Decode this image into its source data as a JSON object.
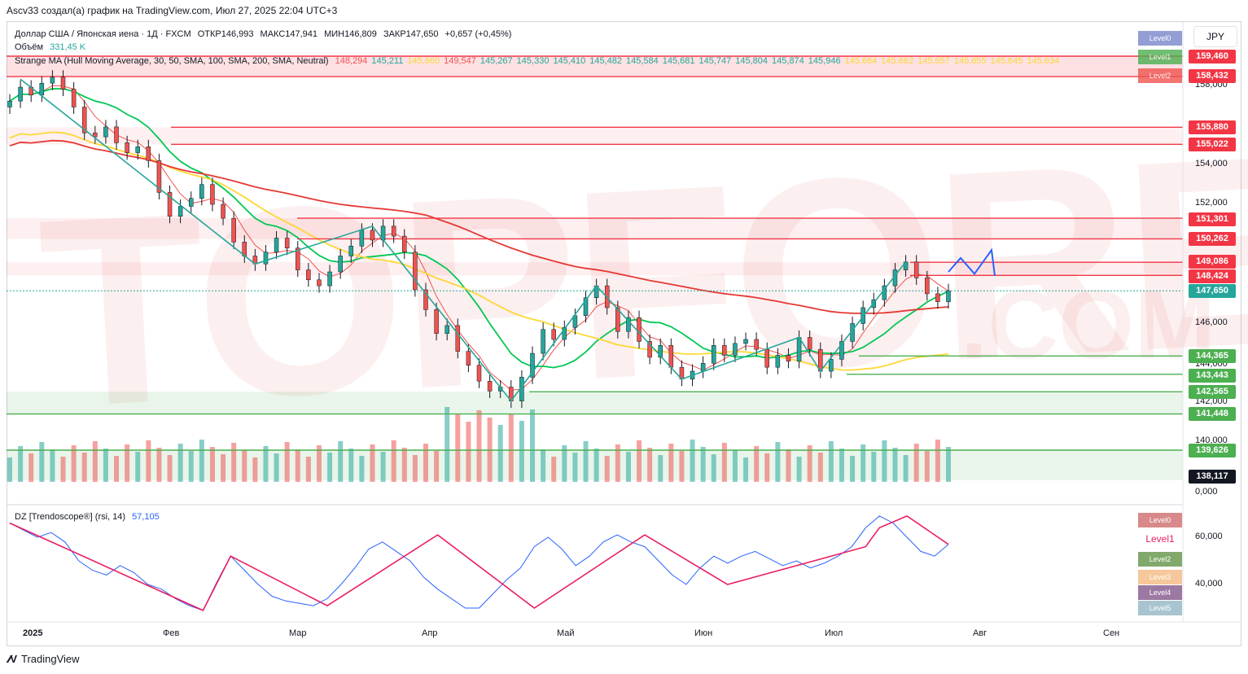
{
  "header": {
    "author_line": "Ascv33 создал(а) график на TradingView.com, Июл 27, 2025 22:04 UTC+3"
  },
  "symbol": {
    "title": "Доллар США / Японская иена · 1Д · FXCM",
    "open": "ОТКР146,993",
    "high": "МАКС147,941",
    "low": "МИН146,809",
    "close": "ЗАКР147,650",
    "change": "+0,657 (+0,45%)"
  },
  "volume": {
    "label": "Объём",
    "value": "331,45 K"
  },
  "ma_indicator": {
    "name": "Strange MA (Hull Moving Average, 30, 50, SMA, 100, SMA, 200, SMA, Neutral)",
    "values": [
      {
        "v": "148,294",
        "c": "#ef5350"
      },
      {
        "v": "145,211",
        "c": "#26a69a"
      },
      {
        "v": "145,660",
        "c": "#fdd835"
      },
      {
        "v": "149,547",
        "c": "#ef5350"
      },
      {
        "v": "145,267",
        "c": "#26a69a"
      },
      {
        "v": "145,330",
        "c": "#26a69a"
      },
      {
        "v": "145,410",
        "c": "#26a69a"
      },
      {
        "v": "145,482",
        "c": "#26a69a"
      },
      {
        "v": "145,584",
        "c": "#26a69a"
      },
      {
        "v": "145,681",
        "c": "#26a69a"
      },
      {
        "v": "145,747",
        "c": "#26a69a"
      },
      {
        "v": "145,804",
        "c": "#26a69a"
      },
      {
        "v": "145,874",
        "c": "#26a69a"
      },
      {
        "v": "145,946",
        "c": "#26a69a"
      },
      {
        "v": "145,664",
        "c": "#fdd835"
      },
      {
        "v": "145,662",
        "c": "#fdd835"
      },
      {
        "v": "145,657",
        "c": "#fdd835"
      },
      {
        "v": "145,655",
        "c": "#fdd835"
      },
      {
        "v": "145,645",
        "c": "#fdd835"
      },
      {
        "v": "145,634",
        "c": "#fdd835"
      }
    ]
  },
  "rsi_indicator": {
    "name": "DZ [Trendoscope®] (rsi, 14)",
    "value": "57,105"
  },
  "currency": "JPY",
  "price_axis": [
    "158,000",
    "154,000",
    "152,000",
    "146,000",
    "144,000",
    "142,000",
    "140,000",
    "0,000"
  ],
  "price_levels": [
    {
      "label": "159,460",
      "color": "#f23645"
    },
    {
      "label": "158,432",
      "color": "#f23645"
    },
    {
      "label": "155,880",
      "color": "#f23645"
    },
    {
      "label": "155,022",
      "color": "#f23645"
    },
    {
      "label": "151,301",
      "color": "#f23645"
    },
    {
      "label": "150,262",
      "color": "#f23645"
    },
    {
      "label": "149,086",
      "color": "#f23645"
    },
    {
      "label": "148,424",
      "color": "#f23645"
    },
    {
      "label": "147,650",
      "color": "#26a69a"
    },
    {
      "label": "144,365",
      "color": "#4caf50"
    },
    {
      "label": "143,443",
      "color": "#4caf50"
    },
    {
      "label": "142,565",
      "color": "#4caf50"
    },
    {
      "label": "141,448",
      "color": "#4caf50"
    },
    {
      "label": "139,626",
      "color": "#4caf50"
    },
    {
      "label": "138,117",
      "color": "#131722"
    }
  ],
  "price_level_boxes": [
    {
      "label": "Level0",
      "color": "#7986cb"
    },
    {
      "label": "Level1",
      "color": "#4caf50"
    },
    {
      "label": "Level2",
      "color": "#ef5350"
    }
  ],
  "rsi_axis": [
    "60,000",
    "40,000"
  ],
  "rsi_level_boxes": [
    {
      "label": "Level0",
      "color": "#d88a8a"
    },
    {
      "label": "Level1",
      "color": "#ffffff"
    },
    {
      "label": "Level2",
      "color": "#81a96b"
    },
    {
      "label": "Level3",
      "color": "#f5c79a"
    },
    {
      "label": "Level4",
      "color": "#9c79a3"
    },
    {
      "label": "Level5",
      "color": "#a8c4d0"
    }
  ],
  "time_axis": [
    "2025",
    "Фев",
    "Мар",
    "Апр",
    "Май",
    "Июн",
    "Июл",
    "Авг",
    "Сен"
  ],
  "footer": {
    "brand": "TradingView"
  },
  "chart_data": {
    "type": "candlestick",
    "title": "Доллар США / Японская иена · 1Д · FXCM",
    "ylabel": "",
    "xlabel": "",
    "ylim": [
      138,
      160
    ],
    "close_series": [
      157.2,
      157.9,
      157.5,
      158.1,
      158.4,
      157.8,
      156.9,
      155.6,
      155.4,
      155.9,
      155.1,
      154.6,
      154.9,
      154.2,
      152.6,
      151.4,
      151.9,
      152.3,
      153.0,
      152.0,
      151.3,
      150.1,
      149.4,
      149.0,
      149.6,
      150.3,
      149.8,
      148.7,
      148.2,
      147.9,
      148.6,
      149.4,
      149.9,
      150.7,
      150.2,
      150.9,
      150.4,
      149.6,
      147.7,
      146.7,
      145.5,
      145.9,
      144.6,
      143.9,
      143.1,
      142.6,
      142.8,
      142.1,
      143.3,
      144.5,
      145.7,
      145.2,
      145.8,
      146.4,
      147.3,
      147.9,
      146.8,
      145.6,
      146.3,
      145.1,
      144.3,
      144.9,
      143.8,
      143.2,
      143.6,
      144.0,
      144.9,
      144.4,
      145.0,
      145.2,
      144.7,
      143.8,
      144.4,
      144.1,
      145.3,
      144.7,
      143.6,
      144.2,
      145.1,
      146.0,
      146.8,
      147.2,
      147.9,
      148.7,
      149.1,
      148.3,
      147.5,
      147.1,
      147.65
    ],
    "rsi_series": [
      66,
      63,
      60,
      62,
      58,
      50,
      46,
      44,
      48,
      45,
      40,
      38,
      34,
      31,
      29,
      41,
      52,
      46,
      40,
      35,
      33,
      32,
      31,
      34,
      40,
      47,
      55,
      58,
      54,
      50,
      43,
      38,
      34,
      30,
      30,
      36,
      42,
      47,
      56,
      60,
      55,
      48,
      52,
      58,
      61,
      58,
      56,
      50,
      44,
      40,
      47,
      52,
      49,
      52,
      54,
      51,
      48,
      50,
      47,
      49,
      52,
      56,
      64,
      69,
      66,
      60,
      54,
      52,
      57
    ],
    "moving_averages": [
      "Hull MA 30",
      "SMA 50",
      "SMA 100",
      "SMA 200"
    ]
  }
}
